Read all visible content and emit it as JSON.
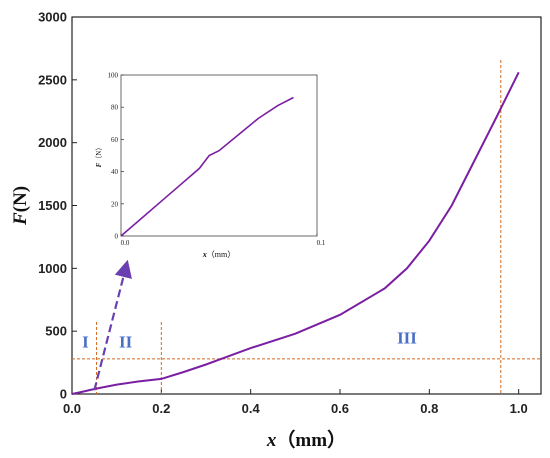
{
  "chart_data": [
    {
      "type": "line",
      "xlabel_var": "x",
      "xlabel_unit": "（mm）",
      "ylabel_var": "F",
      "ylabel_unit": "(N)",
      "xlim": [
        0,
        1.05
      ],
      "ylim": [
        0,
        3000
      ],
      "xticks": [
        "0.0",
        "0.2",
        "0.4",
        "0.6",
        "0.8",
        "1.0"
      ],
      "xtick_values": [
        0,
        0.2,
        0.4,
        0.6,
        0.8,
        1.0
      ],
      "yticks": [
        "0",
        "500",
        "1000",
        "1500",
        "2000",
        "2500",
        "3000"
      ],
      "ytick_values": [
        0,
        500,
        1000,
        1500,
        2000,
        2500,
        3000
      ],
      "series": [
        {
          "color": "#7b1fa2",
          "x": [
            0,
            0.02,
            0.05,
            0.1,
            0.15,
            0.2,
            0.25,
            0.3,
            0.35,
            0.4,
            0.5,
            0.6,
            0.7,
            0.75,
            0.8,
            0.85,
            0.9,
            0.95,
            1.0
          ],
          "y": [
            0,
            15,
            40,
            75,
            100,
            120,
            175,
            235,
            300,
            365,
            480,
            630,
            840,
            1000,
            1220,
            1500,
            1850,
            2200,
            2560
          ]
        }
      ],
      "region_labels": [
        {
          "text": "I",
          "x": 0.03,
          "y": 370
        },
        {
          "text": "II",
          "x": 0.12,
          "y": 370
        },
        {
          "text": "III",
          "x": 0.75,
          "y": 400
        }
      ],
      "vertical_lines": [
        0.055,
        0.2,
        0.96
      ],
      "horizontal_line": 280,
      "zoom_arrow": {
        "from": [
          0.05,
          30
        ],
        "to": [
          0.12,
          1000
        ]
      }
    },
    {
      "type": "line",
      "inset": true,
      "xlabel_var": "x",
      "xlabel_unit": "（mm）",
      "ylabel_var": "F",
      "ylabel_unit": "（N）",
      "xlim": [
        0,
        0.1
      ],
      "ylim": [
        0,
        100
      ],
      "xticks": [
        "0.0",
        "0.1"
      ],
      "xtick_values": [
        0,
        0.1
      ],
      "yticks": [
        "0",
        "20",
        "40",
        "60",
        "80",
        "100"
      ],
      "ytick_values": [
        0,
        20,
        40,
        60,
        80,
        100
      ],
      "series": [
        {
          "color": "#7b1fa2",
          "x": [
            0,
            0.01,
            0.02,
            0.03,
            0.04,
            0.045,
            0.05,
            0.06,
            0.07,
            0.08,
            0.088
          ],
          "y": [
            0,
            10.5,
            21,
            31.5,
            42,
            50,
            53,
            63,
            73,
            81,
            86
          ]
        }
      ]
    }
  ]
}
